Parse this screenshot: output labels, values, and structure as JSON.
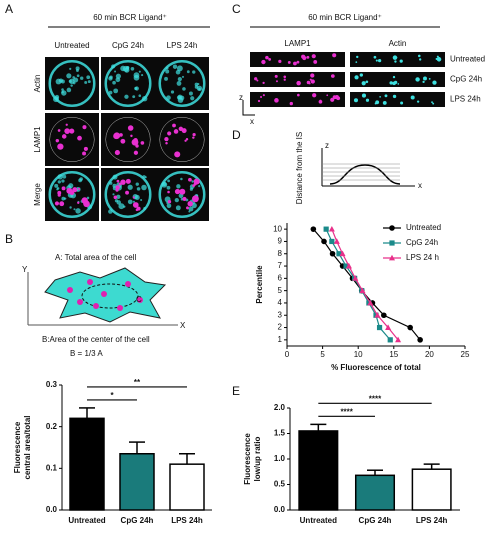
{
  "panels": {
    "A": {
      "label": "A",
      "title": "60 min BCR Ligand⁺",
      "columns": [
        "Untreated",
        "CpG 24h",
        "LPS 24h"
      ],
      "rows": [
        "Actin",
        "LAMP1",
        "Merge"
      ]
    },
    "C": {
      "label": "C",
      "title": "60 min BCR Ligand⁺",
      "columns": [
        "LAMP1",
        "Actin"
      ],
      "rows": [
        "Untreated",
        "CpG 24h",
        "LPS 24h"
      ],
      "axes": [
        "z",
        "x"
      ]
    },
    "D": {
      "label": "D",
      "diagram_label": "Distance from the IS",
      "axes": [
        "z",
        "x"
      ]
    },
    "B": {
      "label": "B",
      "text_a": "A: Total area of the cell",
      "text_b": "B:Area of the center of the cell",
      "formula": "B = 1/3 A",
      "axes": [
        "Y",
        "X"
      ],
      "center": "C"
    },
    "E": {
      "label": "E"
    }
  },
  "chart_data": [
    {
      "type": "line",
      "xlabel": "% Fluorescence of total",
      "ylabel": "Percentile",
      "y": [
        1,
        2,
        3,
        4,
        5,
        6,
        7,
        8,
        9,
        10
      ],
      "series": [
        {
          "name": "Untreated",
          "color": "#000000",
          "marker": "circle",
          "x": [
            18.7,
            17.3,
            13.6,
            12,
            10.5,
            9.2,
            7.8,
            6.4,
            5.2,
            3.7
          ]
        },
        {
          "name": "CpG 24h",
          "color": "#1a8a8a",
          "marker": "square",
          "x": [
            14.5,
            13,
            12.5,
            11.5,
            10.5,
            9.5,
            8.3,
            7.3,
            6.3,
            5.5
          ]
        },
        {
          "name": "LPS 24 h",
          "color": "#e8308a",
          "marker": "triangle",
          "x": [
            15.6,
            14.2,
            12.7,
            11.7,
            10.6,
            9.6,
            8.7,
            7.8,
            7,
            6.3
          ]
        }
      ],
      "xlim": [
        0,
        25
      ],
      "xticks": [
        0,
        5,
        10,
        15,
        20,
        25
      ],
      "ylim": [
        0.5,
        10.5
      ],
      "yticks": [
        1,
        2,
        3,
        4,
        5,
        6,
        7,
        8,
        9,
        10
      ],
      "legend": "top-right"
    },
    {
      "type": "bar",
      "ylabel": [
        "Fluorescence",
        "central area/total"
      ],
      "categories": [
        "Untreated",
        "CpG 24h",
        "LPS 24h"
      ],
      "values": [
        0.22,
        0.135,
        0.11
      ],
      "errors": [
        0.025,
        0.028,
        0.025
      ],
      "colors": [
        "#000000",
        "#1a7b7b",
        "#ffffff"
      ],
      "annotations": [
        "*",
        "**"
      ],
      "ylim": [
        0,
        0.3
      ],
      "yticks": [
        {
          "value": 0,
          "label": "0.0"
        },
        0.1,
        0.2,
        0.3
      ]
    },
    {
      "type": "bar",
      "ylabel": [
        "Fluorescence",
        "low/up ratio"
      ],
      "categories": [
        "Untreated",
        "CpG 24h",
        "LPS 24h"
      ],
      "values": [
        1.55,
        0.68,
        0.8
      ],
      "errors": [
        0.13,
        0.1,
        0.1
      ],
      "colors": [
        "#000000",
        "#1a7b7b",
        "#ffffff"
      ],
      "annotations": [
        "****",
        "****"
      ],
      "ylim": [
        0,
        2
      ],
      "yticks": [
        {
          "value": 0,
          "label": "0.0"
        },
        0.5,
        {
          "value": 1,
          "label": "1.0"
        },
        1.5,
        {
          "value": 2,
          "label": "2.0"
        }
      ]
    }
  ]
}
